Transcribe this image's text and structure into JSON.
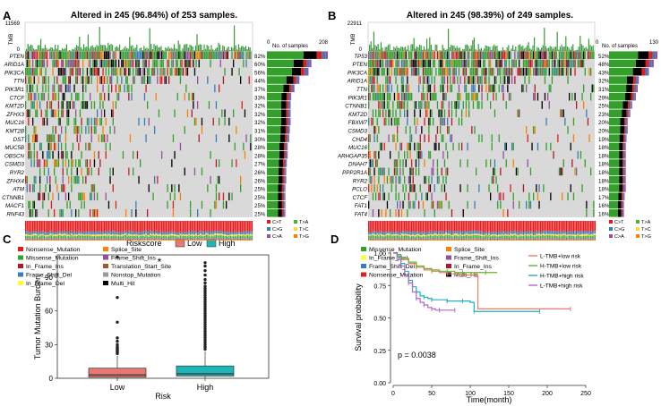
{
  "panels": {
    "A": {
      "letter": "A",
      "title": "Altered in 245 (96.84%) of 253 samples.",
      "tmb_label": "TMB",
      "tmb_max": "11569",
      "tmb_min": "0",
      "bar_axis": {
        "min": "0",
        "label": "No. of samples",
        "max": "208",
        "max_value": 208
      },
      "genes": [
        "PTEN",
        "ARID1A",
        "PIK3CA",
        "TTN",
        "PIK3R1",
        "CTCF",
        "KMT2D",
        "ZFHX3",
        "MUC16",
        "KMT2B",
        "DST",
        "MUC5B",
        "OBSCN",
        "CSMD3",
        "RYR2",
        "ZFHX4",
        "ATM",
        "CTNNB1",
        "MACF1",
        "RNF43"
      ],
      "percents": [
        "82%",
        "60%",
        "56%",
        "44%",
        "37%",
        "33%",
        "32%",
        "32%",
        "32%",
        "31%",
        "30%",
        "28%",
        "28%",
        "27%",
        "26%",
        "26%",
        "25%",
        "25%",
        "25%",
        "25%"
      ],
      "counts": [
        208,
        152,
        142,
        111,
        94,
        83,
        81,
        81,
        81,
        78,
        76,
        71,
        71,
        68,
        66,
        66,
        63,
        63,
        63,
        63
      ],
      "titv": [
        "C>T",
        "T>A",
        "C>G",
        "T>C",
        "C>A",
        "T>G"
      ],
      "legend": [
        "Nonsense_Mutation",
        "Splice_Site",
        "Missense_Mutation",
        "Frame_Shift_Ins",
        "In_Frame_Ins",
        "Translation_Start_Site",
        "Frame_Shift_Del",
        "Nonstop_Mutation",
        "In_Frame_Del",
        "Multi_Hit"
      ],
      "legend_colors": [
        "#e41a1c",
        "#ff7f00",
        "#33a02c",
        "#984ea3",
        "#b2182b",
        "#a65628",
        "#377eb8",
        "#999999",
        "#ffff33",
        "#000000"
      ]
    },
    "B": {
      "letter": "B",
      "title": "Altered in 245 (98.39%) of 249 samples.",
      "tmb_label": "TMB",
      "tmb_max": "22911",
      "tmb_min": "0",
      "bar_axis": {
        "min": "0",
        "label": "No. of samples",
        "max": "130",
        "max_value": 130
      },
      "genes": [
        "TP53",
        "PTEN",
        "PIK3CA",
        "ARID1A",
        "TTN",
        "PIK3R1",
        "CTNNB1",
        "KMT2D",
        "FBXW7",
        "CSMD3",
        "CHD4",
        "MUC16",
        "ARHGAP35",
        "DNAH7",
        "PPP2R1A",
        "RYR2",
        "PCLO",
        "CTCF",
        "FAT1",
        "FAT4"
      ],
      "percents": [
        "52%",
        "48%",
        "43%",
        "32%",
        "31%",
        "29%",
        "25%",
        "23%",
        "20%",
        "20%",
        "19%",
        "18%",
        "18%",
        "18%",
        "18%",
        "18%",
        "18%",
        "17%",
        "16%",
        "16%"
      ],
      "counts": [
        130,
        120,
        107,
        80,
        77,
        72,
        62,
        57,
        50,
        50,
        47,
        45,
        45,
        45,
        45,
        45,
        45,
        42,
        40,
        40
      ],
      "titv": [
        "C>T",
        "T>A",
        "C>G",
        "T>C",
        "C>A",
        "T>G"
      ],
      "legend": [
        "Missense_Mutation",
        "Splice_Site",
        "In_Frame_Del",
        "Frame_Shift_Ins",
        "Frame_Shift_Del",
        "In_Frame_Ins",
        "Nonsense_Mutation",
        "Multi_Hit"
      ],
      "legend_colors": [
        "#33a02c",
        "#ff7f00",
        "#ffff33",
        "#984ea3",
        "#377eb8",
        "#b2182b",
        "#e41a1c",
        "#000000"
      ]
    },
    "C": {
      "letter": "C",
      "legend_title": "Riskscore",
      "legend_items": [
        "Low",
        "High"
      ],
      "colors": {
        "low": "#e87872",
        "high": "#1fb5b7"
      },
      "significance": "*"
    },
    "D": {
      "letter": "D",
      "pvalue": "p = 0.0038"
    }
  },
  "chart_data": [
    {
      "type": "box",
      "title": "",
      "xlabel": "Risk",
      "ylabel": "Tumor Mutation Burden",
      "categories": [
        "Low",
        "High"
      ],
      "ylim": [
        0,
        110
      ],
      "yticks": [
        "0",
        "30",
        "60",
        "90"
      ],
      "ytick_values": [
        0,
        30,
        60,
        90
      ],
      "boxes": [
        {
          "name": "Low",
          "q1": 1,
          "median": 3,
          "q3": 9,
          "whisker_low": 0,
          "whisker_high": 20,
          "outliers": [
            22,
            23,
            24,
            25,
            26,
            27,
            28,
            30,
            33,
            36,
            50,
            72,
            108
          ]
        },
        {
          "name": "High",
          "q1": 2,
          "median": 4,
          "q3": 11,
          "whisker_low": 0,
          "whisker_high": 24,
          "outliers": [
            26,
            28,
            30,
            32,
            34,
            36,
            38,
            40,
            42,
            44,
            46,
            48,
            50,
            52,
            54,
            56,
            58,
            60,
            62,
            64,
            66,
            68,
            70,
            72,
            74,
            76,
            78,
            80,
            82,
            85,
            88,
            92,
            96,
            100,
            103
          ]
        }
      ]
    },
    {
      "type": "line",
      "title": "",
      "xlabel": "Time(month)",
      "ylabel": "Survival probability",
      "xlim": [
        0,
        250
      ],
      "ylim": [
        0,
        1.0
      ],
      "xticks": [
        "0",
        "50",
        "100",
        "150",
        "200",
        "250"
      ],
      "xtick_values": [
        0,
        50,
        100,
        150,
        200,
        250
      ],
      "yticks": [
        "0.00",
        "0.25",
        "0.50",
        "0.75",
        "1.00"
      ],
      "ytick_values": [
        0,
        0.25,
        0.5,
        0.75,
        1.0
      ],
      "series": [
        {
          "name": "L-TMB+low risk",
          "color": "#f07c6c",
          "x": [
            0,
            5,
            10,
            20,
            30,
            40,
            50,
            60,
            70,
            80,
            90,
            100,
            108,
            110,
            230
          ],
          "y": [
            1.0,
            0.98,
            0.95,
            0.92,
            0.89,
            0.87,
            0.86,
            0.85,
            0.84,
            0.84,
            0.83,
            0.83,
            0.83,
            0.57,
            0.57
          ]
        },
        {
          "name": "H-TMB+low risk",
          "color": "#6ab42d",
          "x": [
            0,
            5,
            10,
            20,
            30,
            40,
            50,
            60,
            70,
            80,
            90,
            100,
            120,
            135
          ],
          "y": [
            1.0,
            0.99,
            0.96,
            0.93,
            0.9,
            0.88,
            0.87,
            0.86,
            0.86,
            0.85,
            0.85,
            0.85,
            0.85,
            0.85
          ]
        },
        {
          "name": "H-TMB+high risk",
          "color": "#1fb1bd",
          "x": [
            0,
            5,
            10,
            15,
            20,
            25,
            30,
            35,
            40,
            45,
            50,
            60,
            70,
            80,
            90,
            100,
            105,
            110,
            190
          ],
          "y": [
            1.0,
            0.97,
            0.92,
            0.86,
            0.79,
            0.74,
            0.7,
            0.67,
            0.66,
            0.65,
            0.64,
            0.64,
            0.63,
            0.63,
            0.63,
            0.62,
            0.55,
            0.55,
            0.55
          ]
        },
        {
          "name": "L-TMB+high risk",
          "color": "#b06ad0",
          "x": [
            0,
            5,
            10,
            15,
            20,
            25,
            30,
            35,
            40,
            45,
            50,
            55,
            60,
            70,
            80
          ],
          "y": [
            1.0,
            0.95,
            0.9,
            0.83,
            0.77,
            0.7,
            0.65,
            0.62,
            0.6,
            0.58,
            0.57,
            0.56,
            0.56,
            0.56,
            0.56
          ]
        }
      ]
    }
  ]
}
